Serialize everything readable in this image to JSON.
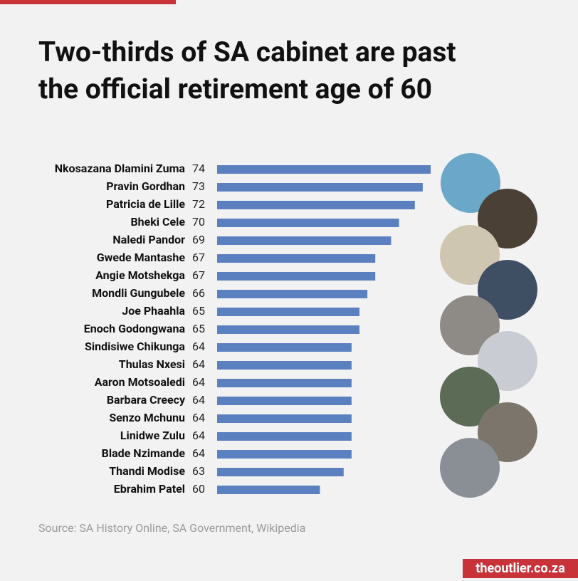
{
  "chart_data": {
    "type": "bar",
    "orientation": "horizontal",
    "title": "Two-thirds of SA cabinet are past the official retirement age of 60",
    "categories": [
      "Nkosazana Dlamini Zuma",
      "Pravin Gordhan",
      "Patricia de Lille",
      "Bheki Cele",
      "Naledi Pandor",
      "Gwede Mantashe",
      "Angie Motshekga",
      "Mondli Gungubele",
      "Joe Phaahla",
      "Enoch Godongwana",
      "Sindisiwe Chikunga",
      "Thulas Nxesi",
      "Aaron Motsoaledi",
      "Barbara Creecy",
      "Senzo Mchunu",
      "Linidwe Zulu",
      "Blade Nzimande",
      "Thandi Modise",
      "Ebrahim Patel"
    ],
    "values": [
      74,
      73,
      72,
      70,
      69,
      67,
      67,
      66,
      65,
      65,
      64,
      64,
      64,
      64,
      64,
      64,
      64,
      63,
      60
    ],
    "color": "#5b80c0",
    "xlim": [
      47,
      74
    ],
    "source": "Source: SA History Online, SA Government, Wikipedia",
    "brand": "theoutlier.co.za"
  }
}
